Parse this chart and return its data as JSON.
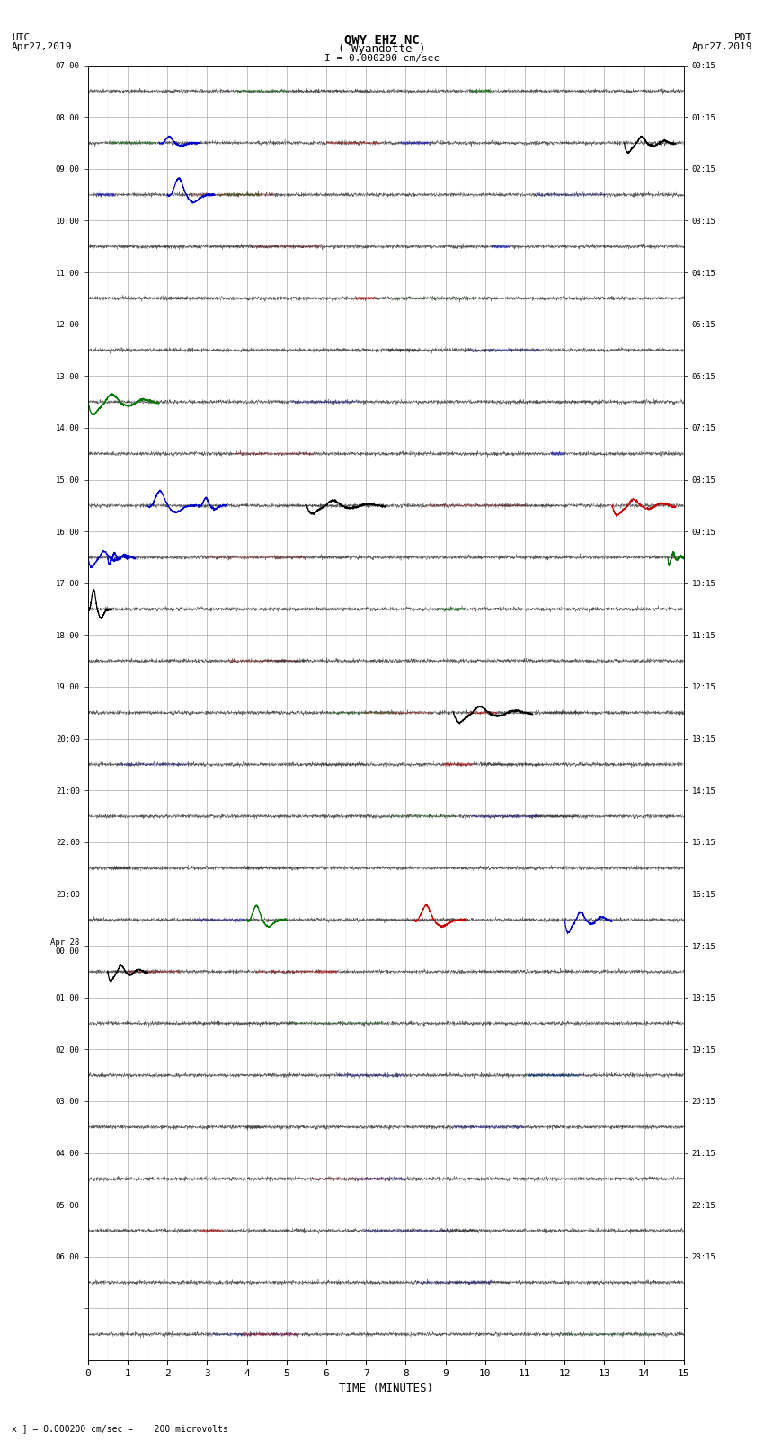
{
  "title_line1": "QWY EHZ NC",
  "title_line2": "( Wyandotte )",
  "scale_label": "I = 0.000200 cm/sec",
  "utc_label": "UTC\nApr27,2019",
  "pdt_label": "PDT\nApr27,2019",
  "footer_label": "x ] = 0.000200 cm/sec =    200 microvolts",
  "xlabel": "TIME (MINUTES)",
  "left_times": [
    "07:00",
    "08:00",
    "09:00",
    "10:00",
    "11:00",
    "12:00",
    "13:00",
    "14:00",
    "15:00",
    "16:00",
    "17:00",
    "18:00",
    "19:00",
    "20:00",
    "21:00",
    "22:00",
    "23:00",
    "Apr 28\n00:00",
    "01:00",
    "02:00",
    "03:00",
    "04:00",
    "05:00",
    "06:00",
    ""
  ],
  "right_times": [
    "00:15",
    "01:15",
    "02:15",
    "03:15",
    "04:15",
    "05:15",
    "06:15",
    "07:15",
    "08:15",
    "09:15",
    "10:15",
    "11:15",
    "12:15",
    "13:15",
    "14:15",
    "15:15",
    "16:15",
    "17:15",
    "18:15",
    "19:15",
    "20:15",
    "21:15",
    "22:15",
    "23:15",
    ""
  ],
  "n_rows": 25,
  "n_cols": 15,
  "x_ticks": [
    0,
    1,
    2,
    3,
    4,
    5,
    6,
    7,
    8,
    9,
    10,
    11,
    12,
    13,
    14,
    15
  ],
  "bg_color": "#ffffff",
  "grid_color": "#aaaaaa",
  "noise_amplitude": 0.04,
  "seed": 42
}
